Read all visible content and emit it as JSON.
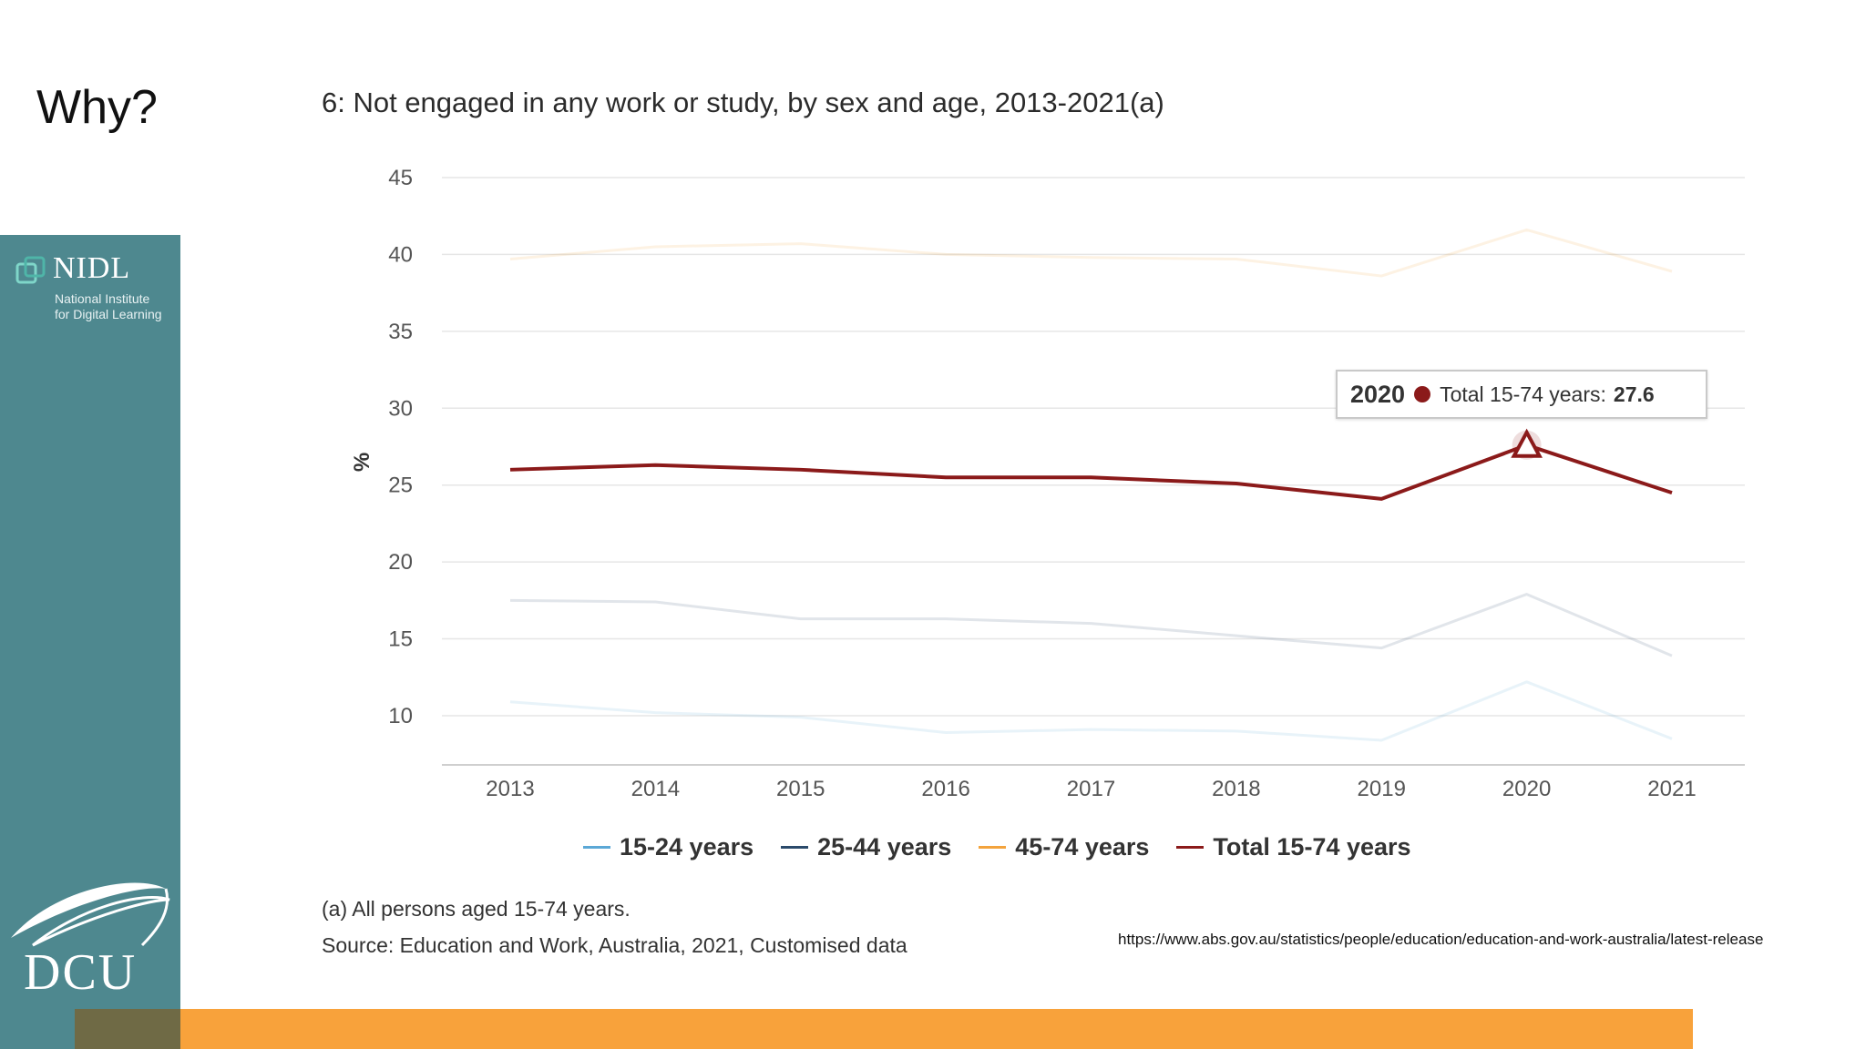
{
  "slide": {
    "title": "Why?",
    "url": "https://www.abs.gov.au/statistics/people/education/education-and-work-australia/latest-release"
  },
  "sidebar": {
    "nidl_name": "NIDL",
    "nidl_subtitle": "National Institute\nfor Digital Learning",
    "dcu_name": "DCU"
  },
  "colors": {
    "sidebar": "#4e888f",
    "bottom_bar": "#f8a23b",
    "total_series": "#8b1a1a"
  },
  "chart_data": {
    "type": "line",
    "title": "6: Not engaged in any work or study, by sex and age, 2013-2021(a)",
    "xlabel": "",
    "ylabel": "%",
    "x": [
      "2013",
      "2014",
      "2015",
      "2016",
      "2017",
      "2018",
      "2019",
      "2020",
      "2021"
    ],
    "yticks": [
      10,
      15,
      20,
      25,
      30,
      35,
      40,
      45
    ],
    "ylim": [
      6.8,
      45
    ],
    "grid": true,
    "legend_position": "bottom",
    "series": [
      {
        "name": "15-24 years",
        "color": "#5ba8d6",
        "values": [
          10.9,
          10.2,
          9.9,
          8.9,
          9.1,
          9.0,
          8.4,
          12.2,
          8.5
        ]
      },
      {
        "name": "25-44 years",
        "color": "#2b4a6b",
        "values": [
          17.5,
          17.4,
          16.3,
          16.3,
          16.0,
          15.2,
          14.4,
          17.9,
          13.9
        ]
      },
      {
        "name": "45-74 years",
        "color": "#f3a33c",
        "values": [
          39.7,
          40.5,
          40.7,
          40.0,
          39.8,
          39.7,
          38.6,
          41.6,
          38.9
        ]
      },
      {
        "name": "Total 15-74 years",
        "color": "#8b1a1a",
        "values": [
          26.0,
          26.3,
          26.0,
          25.5,
          25.5,
          25.1,
          24.1,
          27.6,
          24.5
        ]
      }
    ],
    "tooltip": {
      "year": "2020",
      "label": "Total 15-74 years:",
      "value": "27.6"
    },
    "footnote": "(a) All persons aged 15-74 years.",
    "source": "Source: Education and Work, Australia, 2021, Customised data"
  }
}
